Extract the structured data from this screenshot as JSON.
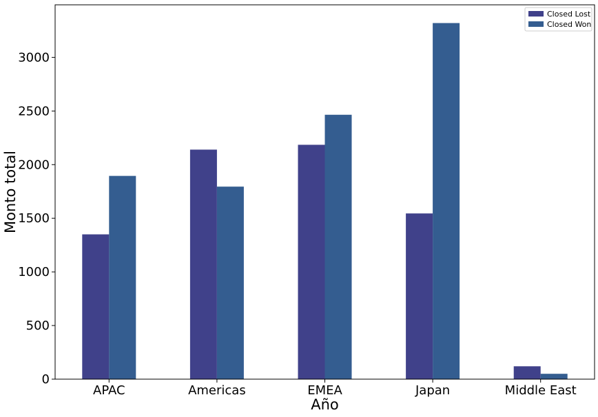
{
  "chart_data": {
    "type": "bar",
    "categories": [
      "APAC",
      "Americas",
      "EMEA",
      "Japan",
      "Middle East"
    ],
    "series": [
      {
        "name": "Closed Lost",
        "values": [
          1350,
          2140,
          2185,
          1545,
          120
        ],
        "color": "#40418a"
      },
      {
        "name": "Closed Won",
        "values": [
          1895,
          1795,
          2465,
          3320,
          50
        ],
        "color": "#345d90"
      }
    ],
    "xlabel": "Año",
    "ylabel": "Monto total",
    "ylim": [
      0,
      3490
    ],
    "yticks": [
      0,
      500,
      1000,
      1500,
      2000,
      2500,
      3000
    ],
    "grid": false,
    "legend": "top-right"
  }
}
